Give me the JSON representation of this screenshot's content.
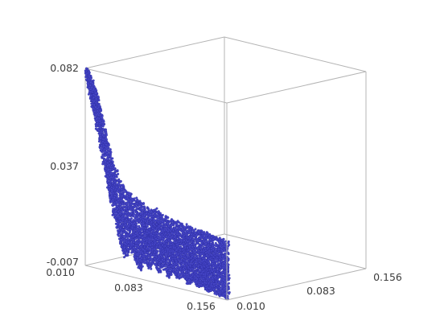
{
  "chart_data": {
    "type": "scatter",
    "title": "",
    "xlabel": "",
    "ylabel": "",
    "zlabel": "",
    "axes": {
      "x": {
        "ticks": [
          "0.010",
          "0.083",
          "0.156"
        ],
        "range": [
          0.01,
          0.156
        ]
      },
      "y": {
        "ticks": [
          "0.010",
          "0.083",
          "0.156"
        ],
        "range": [
          0.01,
          0.156
        ]
      },
      "z": {
        "ticks": [
          "-0.007",
          "0.037",
          "0.082"
        ],
        "range": [
          -0.007,
          0.082
        ]
      }
    },
    "grid": false,
    "legend": "none",
    "marker_color": "#4646c8",
    "marker_edge_color": "#2a2a9a",
    "box_color": "#b4b4b4",
    "point_count_estimate": 6000,
    "envelope_x": [
      0.01,
      0.015,
      0.02,
      0.025,
      0.03,
      0.035,
      0.04,
      0.045,
      0.05,
      0.055,
      0.06,
      0.065,
      0.07,
      0.075,
      0.08,
      0.085,
      0.09,
      0.095,
      0.1,
      0.105,
      0.11,
      0.115,
      0.12,
      0.125,
      0.13,
      0.135,
      0.14,
      0.145,
      0.15,
      0.156
    ],
    "envelope_upper_z": [
      0.082,
      0.078,
      0.071,
      0.064,
      0.054,
      0.045,
      0.04,
      0.036,
      0.031,
      0.03,
      0.029,
      0.028,
      0.026,
      0.025,
      0.026,
      0.025,
      0.024,
      0.024,
      0.023,
      0.023,
      0.022,
      0.022,
      0.022,
      0.021,
      0.021,
      0.021,
      0.02,
      0.02,
      0.02,
      0.02
    ],
    "envelope_lower_z": [
      0.079,
      0.068,
      0.058,
      0.048,
      0.036,
      0.026,
      0.016,
      0.007,
      0.0,
      0.006,
      0.002,
      -0.004,
      0.003,
      -0.002,
      0.002,
      -0.003,
      0.001,
      -0.004,
      0.0,
      -0.004,
      -0.001,
      -0.005,
      -0.002,
      -0.005,
      -0.003,
      -0.006,
      -0.004,
      -0.006,
      -0.006,
      -0.007
    ]
  }
}
